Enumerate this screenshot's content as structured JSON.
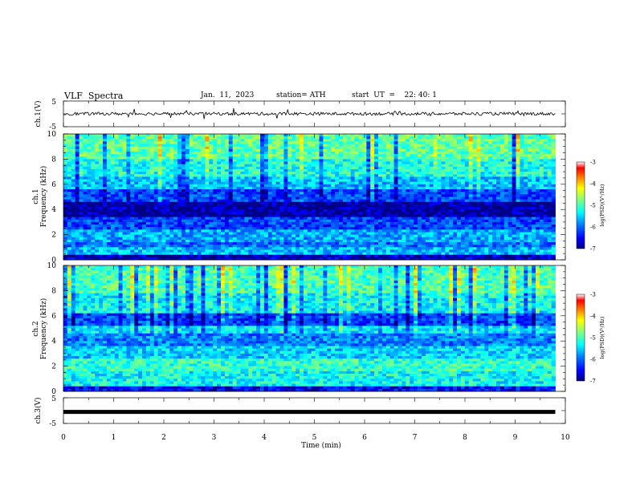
{
  "header": {
    "title": "VLF  Spectra",
    "date": "Jan.  11,  2023",
    "station": "station= ATH",
    "start": "start  UT  =    22: 40: 1"
  },
  "colors": {
    "colormap": [
      "#000080",
      "#0000ff",
      "#0080ff",
      "#00ffff",
      "#80ff80",
      "#ffff00",
      "#ff8000",
      "#ff0000",
      "#ffffff"
    ],
    "trace": "#000000"
  },
  "chart_data": [
    {
      "type": "line",
      "panel": "ch1-waveform",
      "ylabel": "ch.1(V)",
      "ylim": [
        -5,
        5
      ],
      "yticks": [
        "5",
        "-5"
      ],
      "xlim": [
        0,
        10
      ],
      "series": [
        {
          "x": [
            0,
            9.8
          ],
          "y": [
            0.05,
            0.05
          ],
          "noise_amplitude": 0.6
        }
      ]
    },
    {
      "type": "heatmap",
      "panel": "ch1-spectrogram",
      "ylabel_channel": "ch.1",
      "ylabel": "Frequency  (kHz)",
      "ylim": [
        0,
        10
      ],
      "yticks": [
        "0",
        "2",
        "4",
        "6",
        "8",
        "10"
      ],
      "xlim": [
        0,
        10
      ],
      "data_extent_min": 9.8,
      "colorbar": {
        "label": "log(PSD)(V²/Hz)",
        "range": [
          -7,
          -3
        ],
        "ticks": [
          "-3",
          "-4",
          "-5",
          "-6",
          "-7"
        ]
      },
      "bands": [
        {
          "from": 0,
          "to": 0.4,
          "level": -6.8
        },
        {
          "from": 0.4,
          "to": 1.0,
          "level": -5.6
        },
        {
          "from": 1.0,
          "to": 1.4,
          "level": -6.0
        },
        {
          "from": 1.4,
          "to": 2.4,
          "level": -5.7
        },
        {
          "from": 2.4,
          "to": 3.4,
          "level": -6.2
        },
        {
          "from": 3.4,
          "to": 4.6,
          "level": -6.9
        },
        {
          "from": 4.6,
          "to": 5.6,
          "level": -6.2
        },
        {
          "from": 5.6,
          "to": 6.6,
          "level": -5.6
        },
        {
          "from": 6.6,
          "to": 8.0,
          "level": -5.2
        },
        {
          "from": 8.0,
          "to": 10.0,
          "level": -4.9
        }
      ]
    },
    {
      "type": "heatmap",
      "panel": "ch2-spectrogram",
      "ylabel_channel": "ch.2",
      "ylabel": "Frequency  (kHz)",
      "ylim": [
        0,
        10
      ],
      "yticks": [
        "0",
        "2",
        "4",
        "6",
        "8",
        "10"
      ],
      "xlim": [
        0,
        10
      ],
      "data_extent_min": 9.8,
      "colorbar": {
        "label": "log(PSD)(V²/Hz)",
        "range": [
          -7,
          -3
        ],
        "ticks": [
          "-3",
          "-4",
          "-5",
          "-6",
          "-7"
        ]
      },
      "bands": [
        {
          "from": 0,
          "to": 0.4,
          "level": -6.5
        },
        {
          "from": 0.4,
          "to": 1.6,
          "level": -5.3
        },
        {
          "from": 1.6,
          "to": 2.6,
          "level": -5.1
        },
        {
          "from": 2.6,
          "to": 3.6,
          "level": -5.5
        },
        {
          "from": 3.6,
          "to": 4.6,
          "level": -5.9
        },
        {
          "from": 4.6,
          "to": 5.2,
          "level": -5.4
        },
        {
          "from": 5.2,
          "to": 6.2,
          "level": -6.2
        },
        {
          "from": 6.2,
          "to": 7.8,
          "level": -5.3
        },
        {
          "from": 7.8,
          "to": 10.0,
          "level": -5.0
        }
      ]
    },
    {
      "type": "line",
      "panel": "ch3-waveform",
      "ylabel": "ch.3(V)",
      "ylim": [
        -5,
        5
      ],
      "yticks": [
        "5",
        "-5"
      ],
      "xlim": [
        0,
        10
      ],
      "xlabel": "Time  (min)",
      "xticks": [
        "0",
        "1",
        "2",
        "3",
        "4",
        "5",
        "6",
        "7",
        "8",
        "9",
        "10"
      ],
      "series": [
        {
          "x": [
            0,
            9.8
          ],
          "y": [
            -0.5,
            -0.5
          ],
          "noise_amplitude": 0
        }
      ]
    }
  ]
}
